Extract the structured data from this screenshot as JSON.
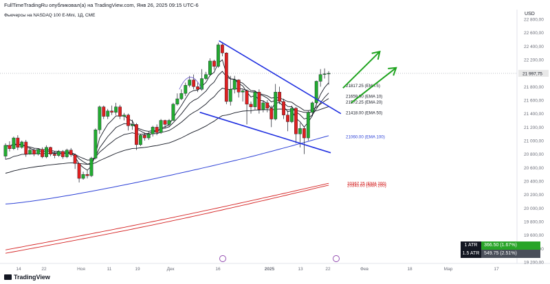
{
  "header": {
    "author_line": "FullTimeTradingRu опубликовал(а) на TradingView.com, Янв 26, 2025 09:15 UTC-6",
    "symbol_line": "Фьючерсы на NASDAQ 100 E-Mini, 1Д, CME",
    "currency": "USD"
  },
  "footer": {
    "brand": "TradingView"
  },
  "atr": {
    "row1_label": "1 ATR",
    "row1_value": "366.50 (1.67%)",
    "row2_label": "1.5 ATR",
    "row2_value": "549.75 (2.51%)"
  },
  "colors": {
    "up": "#22ab30",
    "down": "#e02020",
    "ema": "#131722",
    "ema100": "#2a3fd6",
    "ema200": "#d42020",
    "trend": "#1f2fe0",
    "arrow": "#1ea31e"
  },
  "chart_data": {
    "type": "candlestick",
    "y_axis": {
      "range": [
        19200,
        22800
      ],
      "tick_labels": [
        "22 800,00",
        "22 600,00",
        "22 400,00",
        "22 200,00",
        "22 000,00",
        "21 800,00",
        "21 600,00",
        "21 400,00",
        "21 200,00",
        "21 000,00",
        "20 800,00",
        "20 600,00",
        "20 400,00",
        "20 200,00",
        "20 000,00",
        "19 800,00",
        "19 600,00",
        "19 400,00",
        "19 200,00"
      ],
      "tick_values": [
        22800,
        22600,
        22400,
        22200,
        22000,
        21800,
        21600,
        21400,
        21200,
        21000,
        20800,
        20600,
        20400,
        20200,
        20000,
        19800,
        19600,
        19400,
        19200
      ],
      "current_price_label": "21 997,75",
      "current_price": 21997.75
    },
    "x_axis": {
      "tick_labels": [
        "14",
        "22",
        "Ноя",
        "11",
        "19",
        "Дек",
        "16",
        "2025",
        "13",
        "22",
        "Фев",
        "18",
        "Мар",
        "17"
      ]
    },
    "candles": [
      [
        20770,
        20930,
        20720,
        20960
      ],
      [
        20930,
        20880,
        20840,
        20990
      ],
      [
        20880,
        21040,
        20860,
        21060
      ],
      [
        21040,
        20900,
        20860,
        21080
      ],
      [
        20900,
        20980,
        20880,
        21000
      ],
      [
        20980,
        20800,
        20760,
        21010
      ],
      [
        20800,
        20860,
        20790,
        20900
      ],
      [
        20860,
        20800,
        20770,
        20890
      ],
      [
        20800,
        20870,
        20780,
        20880
      ],
      [
        20870,
        20760,
        20740,
        20900
      ],
      [
        20760,
        20900,
        20740,
        20930
      ],
      [
        20900,
        20800,
        20770,
        20910
      ],
      [
        20800,
        20780,
        20740,
        20840
      ],
      [
        20780,
        20840,
        20760,
        20860
      ],
      [
        20840,
        20760,
        20730,
        20860
      ],
      [
        20760,
        20860,
        20740,
        20880
      ],
      [
        20860,
        20790,
        20760,
        20890
      ],
      [
        20790,
        20660,
        20580,
        20810
      ],
      [
        20660,
        20440,
        20380,
        20670
      ],
      [
        20440,
        20500,
        20420,
        20540
      ],
      [
        20500,
        20480,
        20440,
        20560
      ],
      [
        20480,
        20740,
        20460,
        20760
      ],
      [
        20740,
        21160,
        20720,
        21180
      ],
      [
        21160,
        21500,
        21100,
        21520
      ],
      [
        21500,
        21360,
        21320,
        21520
      ],
      [
        21360,
        21440,
        21320,
        21470
      ],
      [
        21440,
        21420,
        21380,
        21520
      ],
      [
        21420,
        21500,
        21380,
        21560
      ],
      [
        21500,
        21360,
        21320,
        21530
      ],
      [
        21360,
        21380,
        21300,
        21410
      ],
      [
        21380,
        21220,
        21150,
        21400
      ],
      [
        21220,
        21240,
        21160,
        21310
      ],
      [
        21240,
        20940,
        20860,
        21260
      ],
      [
        20940,
        21080,
        20920,
        21100
      ],
      [
        21080,
        21040,
        21000,
        21120
      ],
      [
        21040,
        21100,
        21010,
        21140
      ],
      [
        21100,
        21200,
        21060,
        21220
      ],
      [
        21200,
        21120,
        21080,
        21240
      ],
      [
        21120,
        21300,
        21100,
        21320
      ],
      [
        21300,
        21240,
        21180,
        21310
      ],
      [
        21240,
        21300,
        21200,
        21320
      ],
      [
        21300,
        21540,
        21290,
        21560
      ],
      [
        21540,
        21620,
        21520,
        21700
      ],
      [
        21620,
        21700,
        21600,
        21760
      ],
      [
        21700,
        21820,
        21660,
        21860
      ],
      [
        21820,
        21900,
        21790,
        21960
      ],
      [
        21900,
        21800,
        21760,
        21980
      ],
      [
        21800,
        21760,
        21720,
        21860
      ],
      [
        21760,
        21920,
        21740,
        22060
      ],
      [
        21920,
        21980,
        21900,
        22020
      ],
      [
        21980,
        22180,
        21960,
        22220
      ],
      [
        22180,
        22100,
        22050,
        22200
      ],
      [
        22100,
        22420,
        22080,
        22450
      ],
      [
        22420,
        22300,
        22250,
        22440
      ],
      [
        22300,
        21580,
        21540,
        22310
      ],
      [
        21580,
        21760,
        21520,
        21960
      ],
      [
        21760,
        21900,
        21700,
        21960
      ],
      [
        21900,
        21720,
        21640,
        21910
      ],
      [
        21720,
        21740,
        21580,
        21760
      ],
      [
        21740,
        21540,
        21240,
        21760
      ],
      [
        21540,
        21500,
        21400,
        21580
      ],
      [
        21500,
        21720,
        21460,
        21740
      ],
      [
        21720,
        21460,
        21400,
        21760
      ],
      [
        21460,
        21560,
        21420,
        21600
      ],
      [
        21560,
        21480,
        21420,
        21600
      ],
      [
        21480,
        21320,
        21200,
        21520
      ],
      [
        21320,
        21720,
        21300,
        21840
      ],
      [
        21720,
        21580,
        21540,
        21800
      ],
      [
        21580,
        21380,
        21320,
        21620
      ],
      [
        21380,
        21280,
        21140,
        21440
      ],
      [
        21280,
        21480,
        21260,
        21520
      ],
      [
        21480,
        21100,
        20960,
        21500
      ],
      [
        21100,
        21180,
        20900,
        21260
      ],
      [
        21180,
        21040,
        20800,
        21200
      ],
      [
        21040,
        21420,
        21000,
        21440
      ],
      [
        21420,
        21560,
        21360,
        21580
      ],
      [
        21560,
        21880,
        21520,
        21890
      ],
      [
        21880,
        21980,
        21800,
        22060
      ],
      [
        21980,
        21990,
        21920,
        22070
      ],
      [
        21990,
        21997.75,
        21830,
        22030
      ]
    ],
    "series": [
      {
        "name": "EMA 5",
        "value_label": "21817.25 (EMA 5)",
        "value": 21817.25
      },
      {
        "name": "EMA 10",
        "value_label": "21659.00 (EMA 10)",
        "value": 21659.0
      },
      {
        "name": "EMA 20",
        "value_label": "21572.25 (EMA 20)",
        "value": 21572.25
      },
      {
        "name": "EMA 50",
        "value_label": "21418.00 (EMA 50)",
        "value": 21418.0
      },
      {
        "name": "EMA 100",
        "value_label": "21060.00 (EMA 100)",
        "value": 21060.0
      },
      {
        "name": "EMA 200",
        "value_label": "20367.25 (EMA 200)",
        "value": 20367.25
      },
      {
        "name": "SMA 200",
        "value_label": "20340.00 (SMA 200)",
        "value": 20340.0
      }
    ]
  }
}
